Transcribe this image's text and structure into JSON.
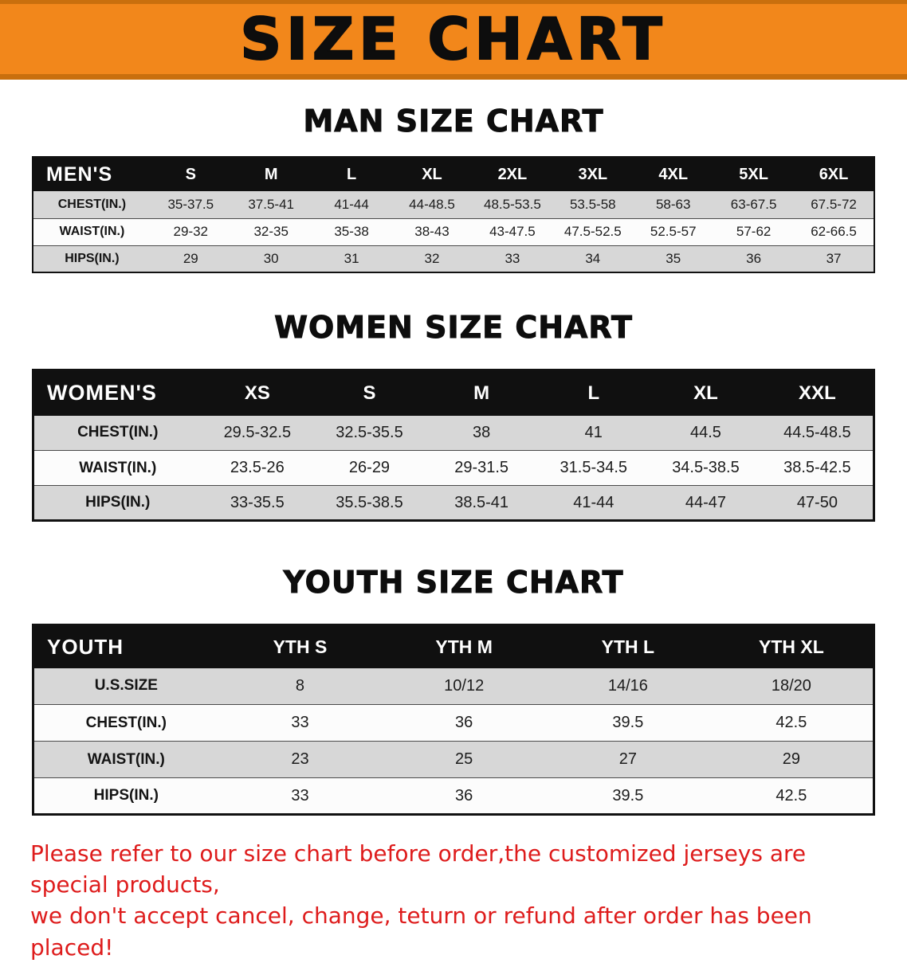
{
  "banner": {
    "title": "SIZE CHART"
  },
  "colors": {
    "banner_orange": "#F2871B",
    "banner_edge": "#C96F0D",
    "header_black": "#101010",
    "row_gray": "#D7D7D7",
    "row_white": "#FCFCFC",
    "note_red": "#DE1C1C",
    "title_black": "#0D0D0D"
  },
  "sections": [
    {
      "id": "men",
      "heading": "MAN SIZE CHART",
      "table": {
        "header": [
          "MEN'S",
          "S",
          "M",
          "L",
          "XL",
          "2XL",
          "3XL",
          "4XL",
          "5XL",
          "6XL"
        ],
        "rows": [
          [
            "CHEST(IN.)",
            "35-37.5",
            "37.5-41",
            "41-44",
            "44-48.5",
            "48.5-53.5",
            "53.5-58",
            "58-63",
            "63-67.5",
            "67.5-72"
          ],
          [
            "WAIST(IN.)",
            "29-32",
            "32-35",
            "35-38",
            "38-43",
            "43-47.5",
            "47.5-52.5",
            "52.5-57",
            "57-62",
            "62-66.5"
          ],
          [
            "HIPS(IN.)",
            "29",
            "30",
            "31",
            "32",
            "33",
            "34",
            "35",
            "36",
            "37"
          ]
        ]
      }
    },
    {
      "id": "women",
      "heading": "WOMEN SIZE CHART",
      "table": {
        "header": [
          "WOMEN'S",
          "XS",
          "S",
          "M",
          "L",
          "XL",
          "XXL"
        ],
        "rows": [
          [
            "CHEST(IN.)",
            "29.5-32.5",
            "32.5-35.5",
            "38",
            "41",
            "44.5",
            "44.5-48.5"
          ],
          [
            "WAIST(IN.)",
            "23.5-26",
            "26-29",
            "29-31.5",
            "31.5-34.5",
            "34.5-38.5",
            "38.5-42.5"
          ],
          [
            "HIPS(IN.)",
            "33-35.5",
            "35.5-38.5",
            "38.5-41",
            "41-44",
            "44-47",
            "47-50"
          ]
        ]
      }
    },
    {
      "id": "youth",
      "heading": "YOUTH SIZE CHART",
      "table": {
        "header": [
          "YOUTH",
          "YTH S",
          "YTH M",
          "YTH L",
          "YTH XL"
        ],
        "rows": [
          [
            "U.S.SIZE",
            "8",
            "10/12",
            "14/16",
            "18/20"
          ],
          [
            "CHEST(IN.)",
            "33",
            "36",
            "39.5",
            "42.5"
          ],
          [
            "WAIST(IN.)",
            "23",
            "25",
            "27",
            "29"
          ],
          [
            "HIPS(IN.)",
            "33",
            "36",
            "39.5",
            "42.5"
          ]
        ]
      }
    }
  ],
  "note": {
    "line1": "Please refer to our size chart before order,the customized jerseys are special products,",
    "line2": "we don't accept cancel, change, teturn or refund after order has been placed!"
  }
}
